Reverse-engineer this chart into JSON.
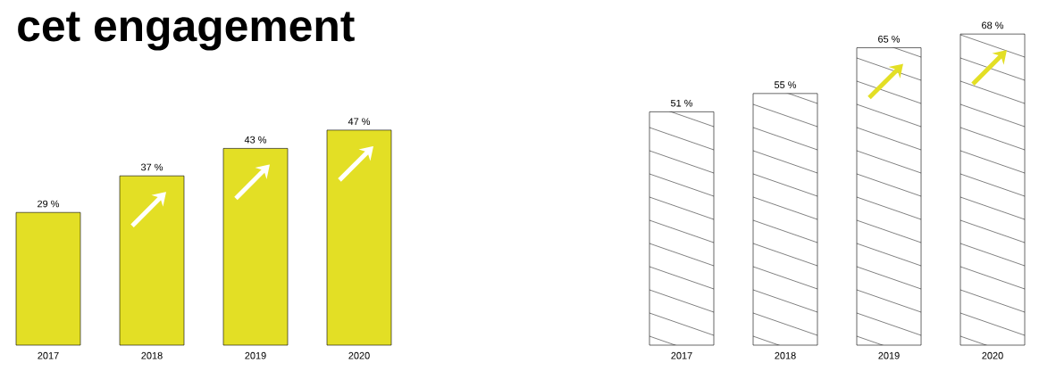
{
  "chart_data": [
    {
      "type": "bar",
      "title": "cet engagement",
      "categories": [
        "2017",
        "2018",
        "2019",
        "2020"
      ],
      "values": [
        29,
        37,
        43,
        47
      ],
      "color": "#e3df25",
      "value_labels": [
        "29 %",
        "37 %",
        "43 %",
        "47 %"
      ]
    },
    {
      "type": "bar",
      "categories": [
        "2017",
        "2018",
        "2019",
        "2020"
      ],
      "values": [
        51,
        55,
        65,
        68
      ],
      "color": "#ffffff",
      "value_labels": [
        "51 %",
        "55 %",
        "65 %",
        "68 %"
      ]
    }
  ]
}
